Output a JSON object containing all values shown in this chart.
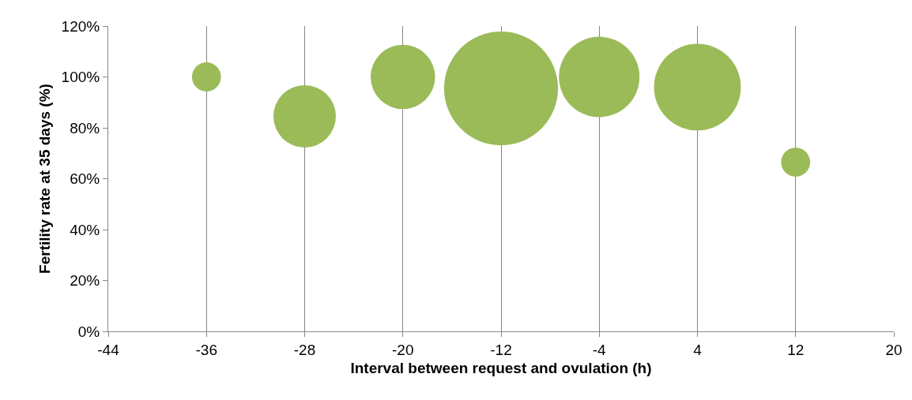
{
  "chart_data": {
    "type": "bubble",
    "xlabel": "Interval between request and ovulation (h)",
    "ylabel": "Fertility rate at 35 days (%)",
    "x": [
      -36,
      -28,
      -20,
      -12,
      -4,
      4,
      12
    ],
    "values": [
      100,
      84.5,
      100,
      95.5,
      100,
      96,
      66.5
    ],
    "sizes": [
      0.065,
      0.3,
      0.32,
      1,
      0.5,
      0.58,
      0.065
    ],
    "color": "#9bbb59",
    "xlim": [
      -44,
      20
    ],
    "xticks": [
      -44,
      -36,
      -28,
      -20,
      -12,
      -4,
      4,
      12,
      20
    ],
    "ylim": [
      0,
      120
    ],
    "yticks": [
      {
        "value": 0,
        "label": "0%"
      },
      {
        "value": 20,
        "label": "20%"
      },
      {
        "value": 40,
        "label": "40%"
      },
      {
        "value": 60,
        "label": "60%"
      },
      {
        "value": 80,
        "label": "80%"
      },
      {
        "value": 100,
        "label": "100%"
      },
      {
        "value": 120,
        "label": "120%"
      }
    ],
    "grid": "x"
  }
}
